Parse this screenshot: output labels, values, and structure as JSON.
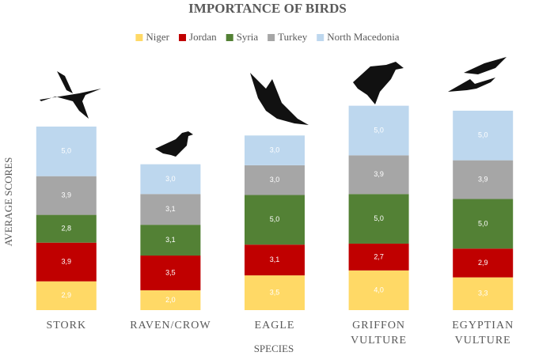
{
  "chart_data": {
    "type": "stacked-bar",
    "title": "IMPORTANCE OF BIRDS",
    "x_label": "SPECIES",
    "y_label": "AVERAGE SCORES",
    "categories": [
      "STORK",
      "RAVEN/CROW",
      "EAGLE",
      "GRIFFON VULTURE",
      "EGYPTIAN VULTURE"
    ],
    "ylim": [
      0,
      24
    ],
    "legend": "top",
    "series": [
      {
        "name": "Niger",
        "color": "#ffd966",
        "values": [
          2.9,
          2.0,
          3.5,
          4.0,
          3.3
        ],
        "value_labels": [
          "2,9",
          "2,0",
          "3,5",
          "4,0",
          "3,3"
        ]
      },
      {
        "name": "Jordan",
        "color": "#c00000",
        "values": [
          3.9,
          3.5,
          3.1,
          2.7,
          2.9
        ],
        "value_labels": [
          "3,9",
          "3,5",
          "3,1",
          "2,7",
          "2,9"
        ]
      },
      {
        "name": "Syria",
        "color": "#538135",
        "values": [
          2.8,
          3.1,
          5.0,
          5.0,
          5.0
        ],
        "value_labels": [
          "2,8",
          "3,1",
          "5,0",
          "5,0",
          "5,0"
        ]
      },
      {
        "name": "Turkey",
        "color": "#a6a6a6",
        "values": [
          3.9,
          3.1,
          3.0,
          3.9,
          3.9
        ],
        "value_labels": [
          "3,9",
          "3,1",
          "3,0",
          "3,9",
          "3,9"
        ]
      },
      {
        "name": "North Macedonia",
        "color": "#bdd7ee",
        "values": [
          5.0,
          3.0,
          3.0,
          5.0,
          5.0
        ],
        "value_labels": [
          "5,0",
          "3,0",
          "3,0",
          "5,0",
          "5,0"
        ]
      }
    ]
  }
}
